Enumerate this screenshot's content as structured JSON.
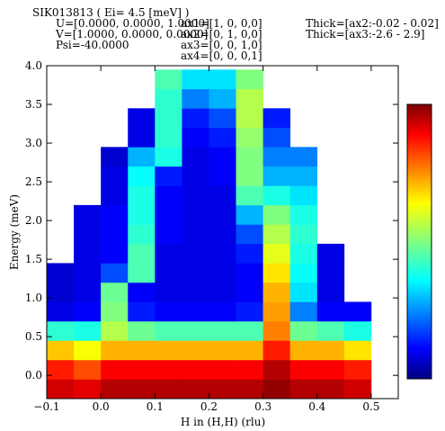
{
  "header": {
    "lines": [
      "SIK013813 ( Ei= 4.5 [meV] )",
      "U=[0.0000, 0.0000, 1.0000]",
      "V=[1.0000, 0.0000, 0.0000]",
      "Psi=-40.0000"
    ],
    "axes": [
      "ax1=[1, 0, 0,0]",
      "ax2=[0, 1, 0,0]",
      "ax3=[0, 0, 1,0]",
      "ax4=[0, 0, 0,1]"
    ],
    "thick": [
      "Thick=[ax2:-0.02 - 0.02]",
      "Thick=[ax3:-2.6 - 2.9]"
    ]
  },
  "chart_data": {
    "type": "heatmap",
    "x_label": "H in (H,H) (rlu)",
    "y_label": "Energy (meV)",
    "xlim": [
      -0.1,
      0.55
    ],
    "ylim": [
      -0.3,
      4.0
    ],
    "xticks": [
      {
        "value": -0.1,
        "label": "−0.1"
      },
      {
        "value": 0,
        "label": "0.0"
      },
      0.1,
      0.2,
      0.3,
      0.4,
      0.5
    ],
    "yticks": [
      {
        "value": 0,
        "label": "0.0"
      },
      0.5,
      {
        "value": 1,
        "label": "1.0"
      },
      1.5,
      {
        "value": 2,
        "label": "2.0"
      },
      2.5,
      {
        "value": 3,
        "label": "3.0"
      },
      3.5,
      {
        "value": 4,
        "label": "4.0"
      }
    ],
    "x": [
      -0.075,
      -0.025,
      0.025,
      0.075,
      0.125,
      0.175,
      0.225,
      0.275,
      0.325,
      0.375,
      0.425,
      0.475,
      0.525
    ],
    "y": [
      -0.175,
      0.075,
      0.325,
      0.575,
      0.825,
      1.075,
      1.325,
      1.575,
      1.825,
      2.075,
      2.325,
      2.575,
      2.825,
      3.075,
      3.325,
      3.575,
      3.825
    ],
    "zlim": [
      0,
      1
    ],
    "z": [
      [
        0.92,
        0.9,
        0.95,
        0.95,
        0.95,
        0.95,
        0.95,
        0.95,
        0.98,
        0.95,
        0.95,
        0.92,
        null
      ],
      [
        0.85,
        0.8,
        0.88,
        0.88,
        0.88,
        0.88,
        0.88,
        0.88,
        0.95,
        0.88,
        0.88,
        0.85,
        null
      ],
      [
        0.68,
        0.62,
        0.7,
        0.7,
        0.7,
        0.7,
        0.7,
        0.7,
        0.85,
        0.7,
        0.7,
        0.65,
        null
      ],
      [
        0.42,
        0.4,
        0.55,
        0.48,
        0.45,
        0.45,
        0.45,
        0.45,
        0.75,
        0.48,
        0.45,
        0.4,
        null
      ],
      [
        0.1,
        0.12,
        0.5,
        0.15,
        0.12,
        0.12,
        0.12,
        0.15,
        0.72,
        0.25,
        0.12,
        0.12,
        null
      ],
      [
        0.08,
        0.1,
        0.48,
        0.12,
        0.1,
        0.1,
        0.1,
        0.12,
        0.7,
        0.35,
        0.1,
        null,
        null
      ],
      [
        0.08,
        0.1,
        0.2,
        0.45,
        0.1,
        0.1,
        0.1,
        0.12,
        0.65,
        0.38,
        0.1,
        null,
        null
      ],
      [
        null,
        0.1,
        0.12,
        0.45,
        0.1,
        0.1,
        0.1,
        0.15,
        0.6,
        0.4,
        0.1,
        null,
        null
      ],
      [
        null,
        0.1,
        0.12,
        0.42,
        0.12,
        0.1,
        0.1,
        0.2,
        0.55,
        0.42,
        null,
        null,
        null
      ],
      [
        null,
        0.1,
        0.12,
        0.4,
        0.12,
        0.1,
        0.1,
        0.3,
        0.5,
        0.4,
        null,
        null,
        null
      ],
      [
        null,
        null,
        0.1,
        0.4,
        0.12,
        0.1,
        0.1,
        0.45,
        0.4,
        0.35,
        null,
        null,
        null
      ],
      [
        null,
        null,
        0.1,
        0.38,
        0.15,
        0.1,
        0.12,
        0.5,
        0.3,
        0.3,
        null,
        null,
        null
      ],
      [
        null,
        null,
        0.08,
        0.3,
        0.4,
        0.1,
        0.12,
        0.5,
        0.25,
        0.25,
        null,
        null,
        null
      ],
      [
        null,
        null,
        null,
        0.1,
        0.42,
        0.12,
        0.15,
        0.52,
        0.2,
        null,
        null,
        null,
        null
      ],
      [
        null,
        null,
        null,
        0.1,
        0.42,
        0.15,
        0.2,
        0.55,
        0.15,
        null,
        null,
        null,
        null
      ],
      [
        null,
        null,
        null,
        null,
        0.42,
        0.25,
        0.3,
        0.55,
        null,
        null,
        null,
        null,
        null
      ],
      [
        null,
        null,
        null,
        null,
        0.45,
        0.35,
        0.35,
        0.5,
        null,
        null,
        null,
        null,
        null
      ]
    ]
  }
}
